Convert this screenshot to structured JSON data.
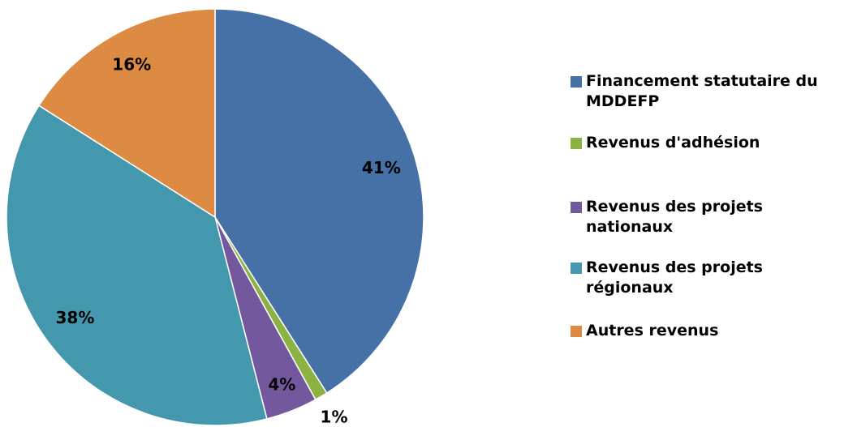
{
  "chart_data": {
    "type": "pie",
    "categories": [
      "Financement statutaire du MDDEFP",
      "Revenus d'adhésion",
      "Revenus des projets nationaux",
      "Revenus des projets régionaux",
      "Autres revenus"
    ],
    "values": [
      41,
      1,
      4,
      38,
      16
    ],
    "value_labels": [
      "41%",
      "1%",
      "4%",
      "38%",
      "16%"
    ],
    "colors": [
      "#4671a7",
      "#8cb244",
      "#74589d",
      "#4498ad",
      "#dd8a42"
    ],
    "legend": "right"
  }
}
